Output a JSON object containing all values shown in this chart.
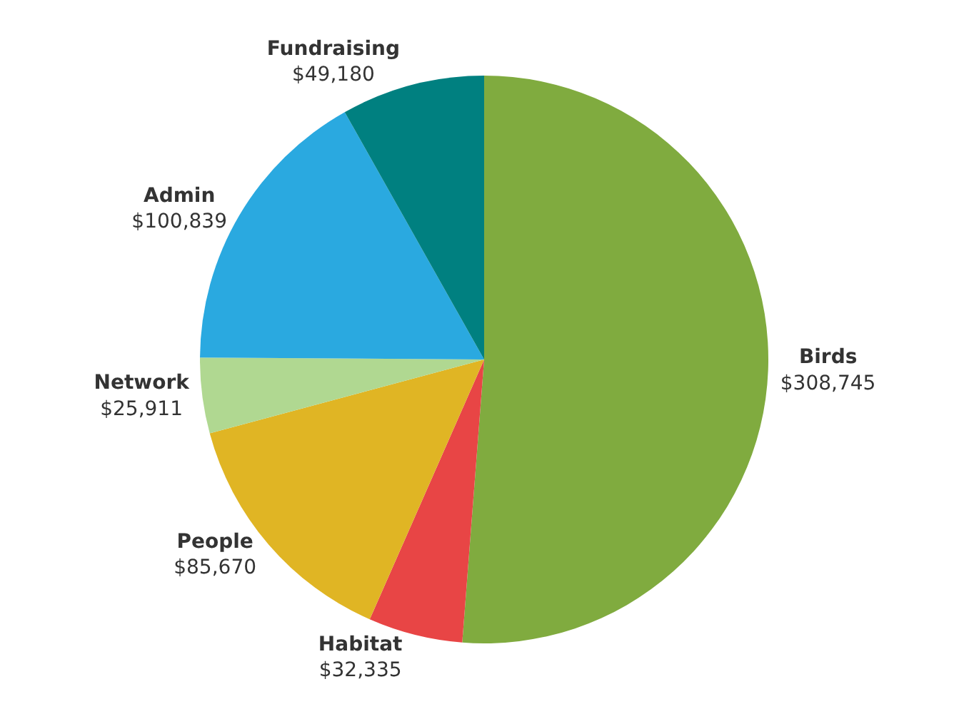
{
  "chart_data": {
    "type": "pie",
    "categories": [
      "Birds",
      "Habitat",
      "People",
      "Network",
      "Admin",
      "Fundraising"
    ],
    "values": [
      308745,
      32335,
      85670,
      25911,
      100839,
      49180
    ],
    "value_labels": [
      "$308,745",
      "$32,335",
      "$85,670",
      "$25,911",
      "$100,839",
      "$49,180"
    ],
    "colors": [
      "#80ab3f",
      "#e84545",
      "#e0b524",
      "#b0d891",
      "#2aa9e0",
      "#008080"
    ],
    "legend": false
  }
}
